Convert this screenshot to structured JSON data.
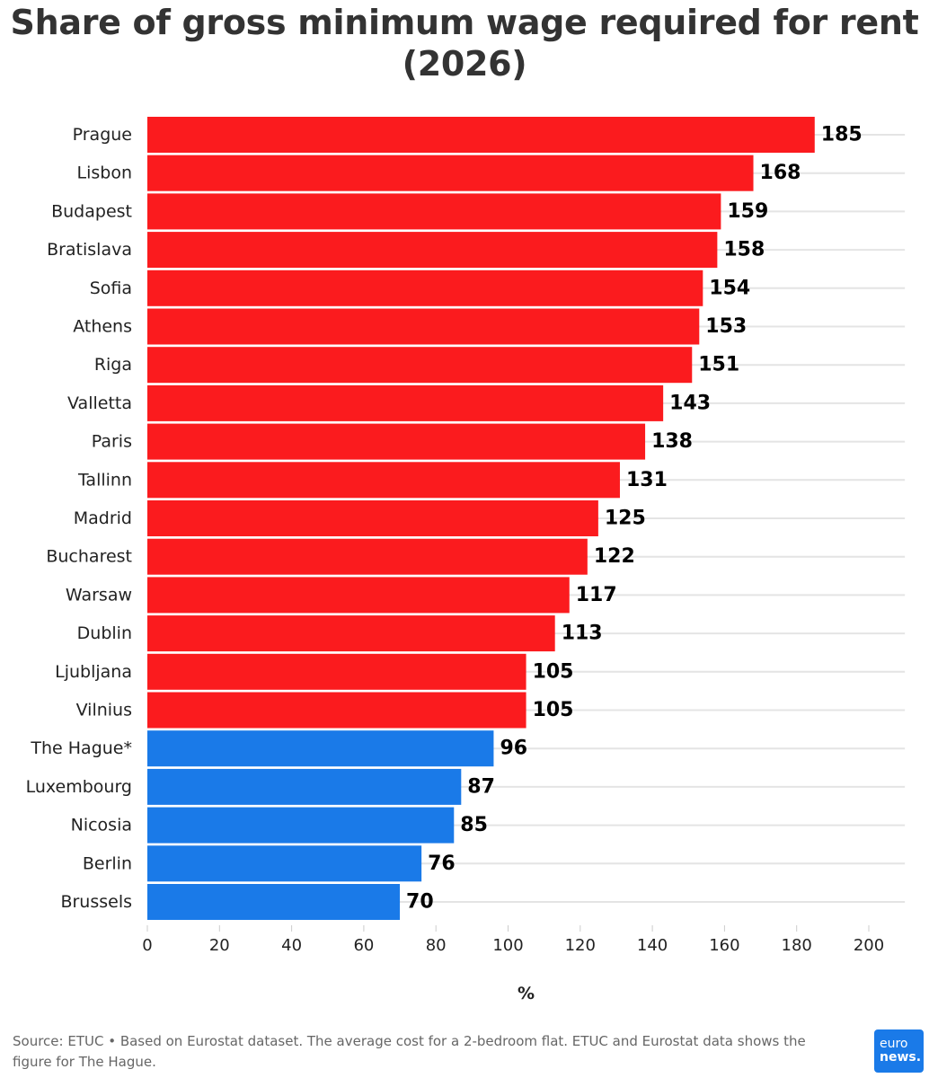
{
  "header": {
    "title": "Share of gross minimum wage required for rent (2026)"
  },
  "chart_data": {
    "type": "bar",
    "orientation": "horizontal",
    "title": "Share of gross minimum wage required for rent (2026)",
    "xlabel": "%",
    "ylabel": "",
    "xlim": [
      0,
      210
    ],
    "xticks": [
      0,
      20,
      40,
      60,
      80,
      100,
      120,
      140,
      160,
      180,
      200
    ],
    "grid": true,
    "legend": "none",
    "colors": {
      "above_100": "#fb1b1e",
      "below_100": "#1a7ae8"
    },
    "categories": [
      "Prague",
      "Lisbon",
      "Budapest",
      "Bratislava",
      "Sofia",
      "Athens",
      "Riga",
      "Valletta",
      "Paris",
      "Tallinn",
      "Madrid",
      "Bucharest",
      "Warsaw",
      "Dublin",
      "Ljubljana",
      "Vilnius",
      "The Hague*",
      "Luxembourg",
      "Nicosia",
      "Berlin",
      "Brussels"
    ],
    "values": [
      185,
      168,
      159,
      158,
      154,
      153,
      151,
      143,
      138,
      131,
      125,
      122,
      117,
      113,
      105,
      105,
      96,
      87,
      85,
      76,
      70
    ]
  },
  "footer": {
    "source": "Source: ETUC • Based on Eurostat dataset. The average cost for a 2-bedroom flat. ETUC and Eurostat data shows the figure for The Hague.",
    "logo_line1": "euro",
    "logo_line2": "news."
  }
}
